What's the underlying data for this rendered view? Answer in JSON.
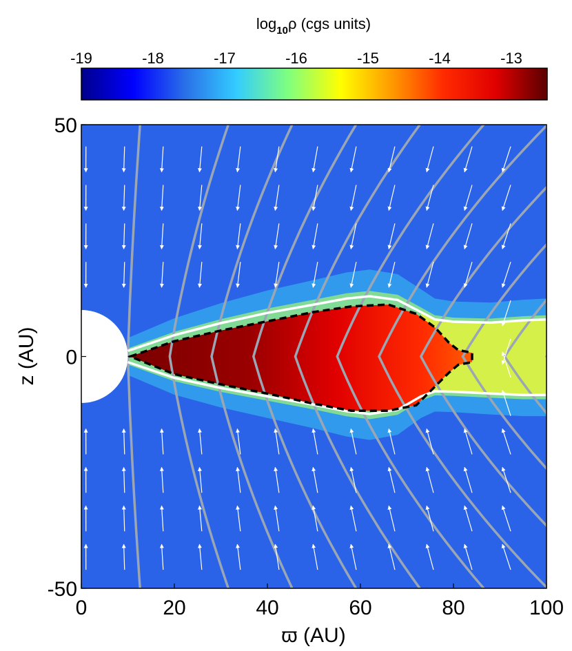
{
  "chart_data": {
    "type": "heatmap",
    "colorbar": {
      "title_base": "log",
      "title_sub": "10",
      "title_rest": "ρ (cgs units)",
      "ticks": [
        -19,
        -18,
        -17,
        -16,
        -15,
        -14,
        -13
      ],
      "tick_labels": [
        "-19",
        "-18",
        "-17",
        "-16",
        "-15",
        "-14",
        "-13"
      ],
      "range": [
        -19,
        -12.5
      ],
      "colormap": [
        "#00008b",
        "#0000ff",
        "#2a6fe8",
        "#33ccff",
        "#7fff7f",
        "#ffff00",
        "#ff9900",
        "#ff2a00",
        "#e00000",
        "#5a0000"
      ]
    },
    "xlabel": "ϖ (AU)",
    "ylabel": "z (AU)",
    "xlim": [
      0,
      100
    ],
    "ylim": [
      -50,
      50
    ],
    "xticks": [
      0,
      20,
      40,
      60,
      80,
      100
    ],
    "xtick_labels": [
      "0",
      "20",
      "40",
      "60",
      "80",
      "100"
    ],
    "yticks": [
      -50,
      0,
      50
    ],
    "ytick_labels": [
      "-50",
      "0",
      "50"
    ],
    "background_log_density": -17.9,
    "central_hole_radius_au": 10,
    "disk_outer_boundary_dashed": [
      [
        10.5,
        0
      ],
      [
        20,
        3.3
      ],
      [
        30,
        5.6
      ],
      [
        40,
        7.6
      ],
      [
        50,
        9.6
      ],
      [
        58,
        10.8
      ],
      [
        66,
        11.2
      ],
      [
        72,
        9.2
      ],
      [
        76,
        6.3
      ],
      [
        79,
        3
      ],
      [
        81,
        1.4
      ],
      [
        84,
        0.8
      ],
      [
        84,
        -1.2
      ],
      [
        81,
        -1.8
      ],
      [
        79,
        -3.5
      ],
      [
        76,
        -6.5
      ],
      [
        72,
        -10.5
      ],
      [
        66,
        -11.7
      ],
      [
        58,
        -11.7
      ],
      [
        50,
        -10.2
      ],
      [
        40,
        -8
      ],
      [
        30,
        -6
      ],
      [
        20,
        -3.8
      ],
      [
        10.5,
        0
      ]
    ],
    "white_contour_upper": [
      [
        10,
        1.2
      ],
      [
        20,
        4.6
      ],
      [
        30,
        7.2
      ],
      [
        40,
        9.4
      ],
      [
        50,
        11.2
      ],
      [
        57,
        12.5
      ],
      [
        62,
        13
      ],
      [
        68,
        12.2
      ],
      [
        73,
        9.6
      ],
      [
        76,
        8
      ],
      [
        80,
        7.5
      ],
      [
        88,
        7.3
      ],
      [
        95,
        7.8
      ],
      [
        100,
        8
      ]
    ],
    "white_contour_lower": [
      [
        10,
        -1.2
      ],
      [
        20,
        -4.6
      ],
      [
        30,
        -6.8
      ],
      [
        40,
        -8.6
      ],
      [
        50,
        -10.4
      ],
      [
        57,
        -11.8
      ],
      [
        62,
        -12.4
      ],
      [
        68,
        -11.5
      ],
      [
        73,
        -8.6
      ],
      [
        76,
        -7.5
      ],
      [
        80,
        -7.6
      ],
      [
        88,
        -8
      ],
      [
        95,
        -8.3
      ],
      [
        100,
        -8.3
      ]
    ],
    "field_line_midplane_crossings": [
      10,
      19,
      28,
      37,
      46,
      55,
      64,
      73,
      82,
      91,
      100
    ]
  }
}
